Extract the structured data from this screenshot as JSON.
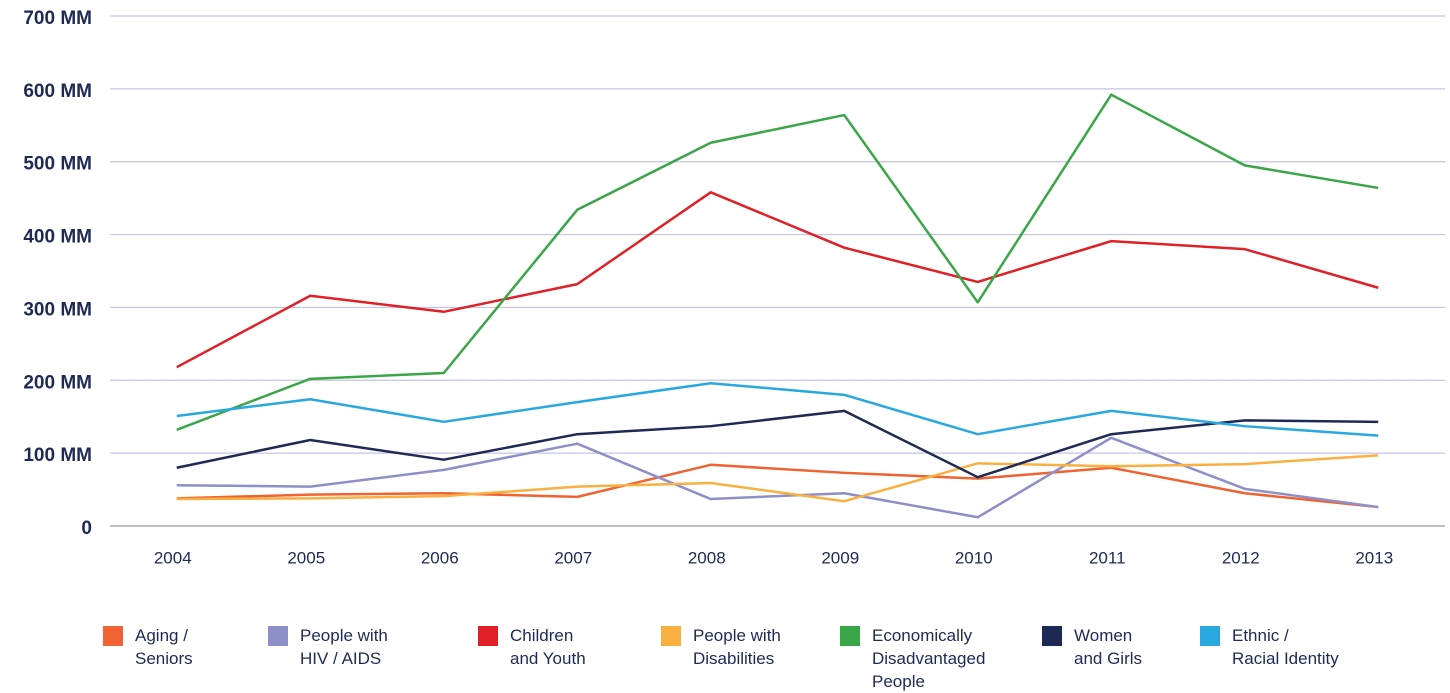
{
  "chart_data": {
    "type": "line",
    "categories": [
      "2004",
      "2005",
      "2006",
      "2007",
      "2008",
      "2009",
      "2010",
      "2011",
      "2012",
      "2013"
    ],
    "ylim": [
      0,
      700
    ],
    "yticks": [
      0,
      {
        "value": 100,
        "label": "100 MM"
      },
      {
        "value": 200,
        "label": "200 MM"
      },
      {
        "value": 300,
        "label": "300 MM"
      },
      {
        "value": 400,
        "label": "400 MM"
      },
      {
        "value": 500,
        "label": "500 MM"
      },
      {
        "value": 600,
        "label": "600 MM"
      },
      {
        "value": 700,
        "label": "700 MM"
      }
    ],
    "grid": true,
    "series": [
      {
        "name": "Aging /\nSeniors",
        "color": "#ef6232",
        "values": [
          38,
          43,
          45,
          40,
          84,
          73,
          65,
          80,
          45,
          26
        ]
      },
      {
        "name": "People with\nHIV / AIDS",
        "color": "#8e8fc8",
        "values": [
          56,
          54,
          77,
          113,
          37,
          45,
          12,
          121,
          51,
          26
        ]
      },
      {
        "name": "Children\nand Youth",
        "color": "#e02027",
        "values": [
          218,
          316,
          294,
          332,
          458,
          382,
          335,
          391,
          380,
          327
        ]
      },
      {
        "name": "People with\nDisabilities",
        "color": "#f9b040",
        "values": [
          37,
          38,
          41,
          54,
          59,
          34,
          86,
          82,
          85,
          97
        ]
      },
      {
        "name": "Economically\nDisadvantaged\nPeople",
        "color": "#3aa648",
        "values": [
          132,
          202,
          210,
          434,
          526,
          564,
          307,
          592,
          495,
          464
        ]
      },
      {
        "name": "Women\nand Girls",
        "color": "#1e2a55",
        "values": [
          80,
          118,
          91,
          126,
          137,
          158,
          67,
          126,
          145,
          143
        ]
      },
      {
        "name": "Ethnic /\nRacial Identity",
        "color": "#29a8e0",
        "values": [
          151,
          174,
          143,
          170,
          196,
          180,
          126,
          158,
          137,
          124
        ]
      }
    ]
  }
}
